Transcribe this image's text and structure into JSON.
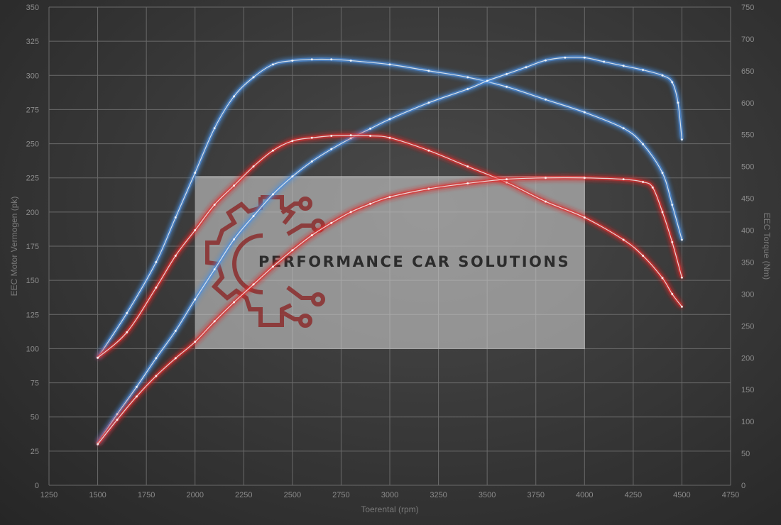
{
  "chart_data": {
    "type": "line",
    "xlabel": "Toerental (rpm)",
    "ylabel_left": "EEC Motor Vermogen (pk)",
    "ylabel_right": "EEC Torque (Nm)",
    "xlim": [
      1250,
      4750
    ],
    "ylim_left": [
      0,
      350
    ],
    "ylim_right": [
      0,
      750
    ],
    "x_ticks": [
      1250,
      1500,
      1750,
      2000,
      2250,
      2500,
      2750,
      3000,
      3250,
      3500,
      3750,
      4000,
      4250,
      4500,
      4750
    ],
    "y_ticks_left": [
      0,
      25,
      50,
      75,
      100,
      125,
      150,
      175,
      200,
      225,
      250,
      275,
      300,
      325,
      350
    ],
    "y_ticks_right": [
      0,
      50,
      100,
      150,
      200,
      250,
      300,
      350,
      400,
      450,
      500,
      550,
      600,
      650,
      700,
      750
    ],
    "grid": true,
    "series": [
      {
        "axis": "right",
        "color": "#4d8fe0",
        "points": [
          [
            1500,
            200
          ],
          [
            1650,
            270
          ],
          [
            1800,
            350
          ],
          [
            1900,
            420
          ],
          [
            2000,
            490
          ],
          [
            2100,
            560
          ],
          [
            2200,
            610
          ],
          [
            2300,
            640
          ],
          [
            2400,
            660
          ],
          [
            2500,
            666
          ],
          [
            2600,
            668
          ],
          [
            2700,
            668
          ],
          [
            2800,
            666
          ],
          [
            3000,
            660
          ],
          [
            3200,
            650
          ],
          [
            3400,
            640
          ],
          [
            3600,
            625
          ],
          [
            3800,
            605
          ],
          [
            4000,
            585
          ],
          [
            4200,
            560
          ],
          [
            4300,
            535
          ],
          [
            4400,
            490
          ],
          [
            4450,
            440
          ],
          [
            4500,
            385
          ]
        ]
      },
      {
        "axis": "left",
        "color": "#4d8fe0",
        "points": [
          [
            1500,
            31
          ],
          [
            1600,
            52
          ],
          [
            1700,
            72
          ],
          [
            1800,
            93
          ],
          [
            1900,
            113
          ],
          [
            2000,
            136
          ],
          [
            2100,
            158
          ],
          [
            2200,
            180
          ],
          [
            2300,
            197
          ],
          [
            2400,
            213
          ],
          [
            2500,
            226
          ],
          [
            2600,
            237
          ],
          [
            2700,
            246
          ],
          [
            2800,
            254
          ],
          [
            2900,
            261
          ],
          [
            3000,
            268
          ],
          [
            3200,
            280
          ],
          [
            3400,
            290
          ],
          [
            3500,
            296
          ],
          [
            3600,
            301
          ],
          [
            3700,
            306
          ],
          [
            3800,
            311
          ],
          [
            3900,
            313
          ],
          [
            4000,
            313
          ],
          [
            4100,
            310
          ],
          [
            4200,
            307
          ],
          [
            4300,
            304
          ],
          [
            4400,
            300
          ],
          [
            4450,
            295
          ],
          [
            4480,
            280
          ],
          [
            4500,
            253
          ]
        ]
      },
      {
        "axis": "right",
        "color": "#e03030",
        "points": [
          [
            1500,
            200
          ],
          [
            1650,
            240
          ],
          [
            1800,
            310
          ],
          [
            1900,
            360
          ],
          [
            2000,
            400
          ],
          [
            2100,
            440
          ],
          [
            2200,
            470
          ],
          [
            2300,
            500
          ],
          [
            2400,
            525
          ],
          [
            2500,
            540
          ],
          [
            2600,
            545
          ],
          [
            2700,
            548
          ],
          [
            2800,
            549
          ],
          [
            2900,
            548
          ],
          [
            3000,
            545
          ],
          [
            3200,
            525
          ],
          [
            3400,
            500
          ],
          [
            3600,
            475
          ],
          [
            3800,
            445
          ],
          [
            4000,
            420
          ],
          [
            4200,
            385
          ],
          [
            4300,
            360
          ],
          [
            4400,
            325
          ],
          [
            4450,
            300
          ],
          [
            4500,
            280
          ]
        ]
      },
      {
        "axis": "left",
        "color": "#e03030",
        "points": [
          [
            1500,
            30
          ],
          [
            1600,
            48
          ],
          [
            1700,
            65
          ],
          [
            1800,
            80
          ],
          [
            1900,
            93
          ],
          [
            2000,
            105
          ],
          [
            2100,
            120
          ],
          [
            2200,
            134
          ],
          [
            2300,
            147
          ],
          [
            2400,
            160
          ],
          [
            2500,
            172
          ],
          [
            2600,
            183
          ],
          [
            2700,
            192
          ],
          [
            2800,
            200
          ],
          [
            2900,
            206
          ],
          [
            3000,
            211
          ],
          [
            3200,
            217
          ],
          [
            3400,
            221
          ],
          [
            3600,
            224
          ],
          [
            3800,
            225
          ],
          [
            4000,
            225
          ],
          [
            4200,
            224
          ],
          [
            4300,
            222
          ],
          [
            4350,
            218
          ],
          [
            4400,
            200
          ],
          [
            4450,
            178
          ],
          [
            4500,
            152
          ]
        ]
      }
    ]
  },
  "watermark": {
    "brand_text": "PERFORMANCE CAR SOLUTIONS",
    "logo_color": "#8a2020",
    "panel_color": "#d8d8d8"
  }
}
